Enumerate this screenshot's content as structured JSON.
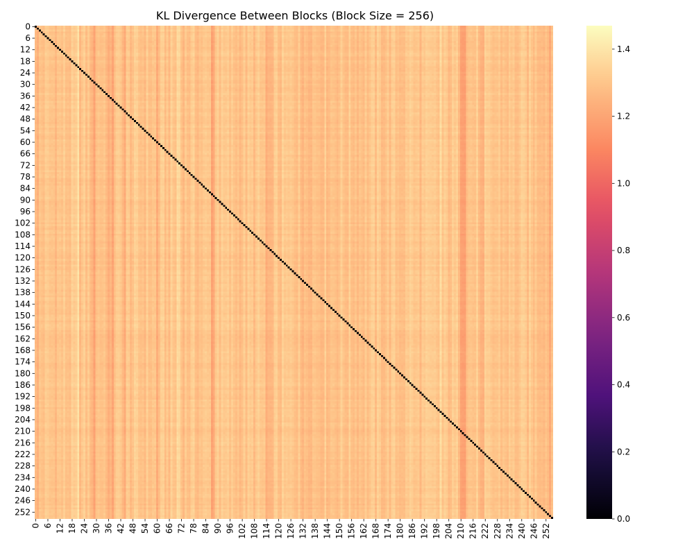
{
  "chart_data": {
    "type": "heatmap",
    "title": "KL Divergence Between Blocks (Block Size = 256)",
    "xlabel": "",
    "ylabel": "",
    "n": 256,
    "x_tick_labels": [
      "0",
      "6",
      "12",
      "18",
      "24",
      "30",
      "36",
      "42",
      "48",
      "54",
      "60",
      "66",
      "72",
      "78",
      "84",
      "90",
      "96",
      "102",
      "108",
      "114",
      "120",
      "126",
      "132",
      "138",
      "144",
      "150",
      "156",
      "162",
      "168",
      "174",
      "180",
      "186",
      "192",
      "198",
      "204",
      "210",
      "216",
      "222",
      "228",
      "234",
      "240",
      "246",
      "252"
    ],
    "y_tick_labels": [
      "0",
      "6",
      "12",
      "18",
      "24",
      "30",
      "36",
      "42",
      "48",
      "54",
      "60",
      "66",
      "72",
      "78",
      "84",
      "90",
      "96",
      "102",
      "108",
      "114",
      "120",
      "126",
      "132",
      "138",
      "144",
      "150",
      "156",
      "162",
      "168",
      "174",
      "180",
      "186",
      "192",
      "198",
      "204",
      "210",
      "216",
      "222",
      "228",
      "234",
      "240",
      "246",
      "252"
    ],
    "diagonal_value": 0.0,
    "typical_offdiagonal_value": 1.3,
    "value_range": [
      0.0,
      1.47
    ],
    "colormap": "magma",
    "colorbar": {
      "ticks": [
        0.0,
        0.2,
        0.4,
        0.6,
        0.8,
        1.0,
        1.2,
        1.4
      ],
      "tick_labels": [
        "0.0",
        "0.2",
        "0.4",
        "0.6",
        "0.8",
        "1.0",
        "1.2",
        "1.4"
      ],
      "min": 0.0,
      "max": 1.47
    },
    "darker_columns": [
      1,
      28,
      29,
      36,
      37,
      38,
      44,
      60,
      87,
      88,
      114,
      115,
      116,
      131,
      132,
      210,
      211,
      212,
      220,
      221,
      254
    ],
    "lighter_columns": [
      21,
      70,
      71,
      90,
      130,
      131,
      185,
      200
    ]
  }
}
